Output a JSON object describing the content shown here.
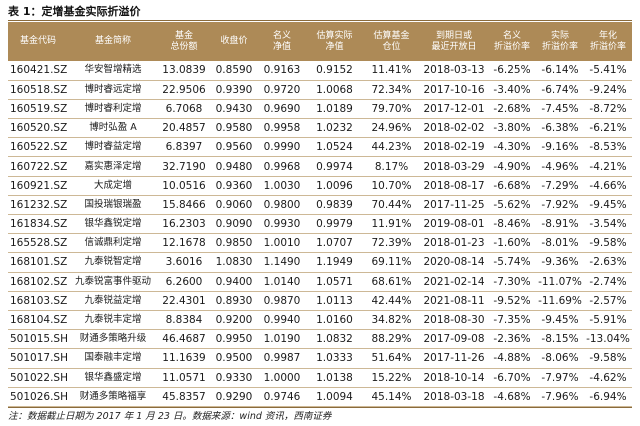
{
  "caption": "表 1：定增基金实际折溢价",
  "headers": [
    "基金代码",
    "基金简称",
    "基金\n总份额",
    "收盘价",
    "名义\n净值",
    "估算实际\n净值",
    "估算基金\n仓位",
    "到期日或\n最近开放日",
    "名义\n折溢价率",
    "实际\n折溢价率",
    "年化\n折溢价率"
  ],
  "rows": [
    [
      "160421.SZ",
      "华安智增精选",
      "13.0839",
      "0.8590",
      "0.9163",
      "0.9152",
      "11.41%",
      "2018-03-13",
      "-6.25%",
      "-6.14%",
      "-5.41%"
    ],
    [
      "160518.SZ",
      "博时睿远定增",
      "22.9506",
      "0.9390",
      "0.9720",
      "1.0068",
      "72.34%",
      "2017-10-16",
      "-3.40%",
      "-6.74%",
      "-9.24%"
    ],
    [
      "160519.SZ",
      "博时睿利定增",
      "6.7068",
      "0.9430",
      "0.9690",
      "1.0189",
      "79.70%",
      "2017-12-01",
      "-2.68%",
      "-7.45%",
      "-8.72%"
    ],
    [
      "160520.SZ",
      "博时弘盈 A",
      "20.4857",
      "0.9580",
      "0.9958",
      "1.0232",
      "24.96%",
      "2018-02-02",
      "-3.80%",
      "-6.38%",
      "-6.21%"
    ],
    [
      "160522.SZ",
      "博时睿益定增",
      "6.8397",
      "0.9560",
      "0.9990",
      "1.0524",
      "44.23%",
      "2018-02-19",
      "-4.30%",
      "-9.16%",
      "-8.53%"
    ],
    [
      "160722.SZ",
      "嘉实惠泽定增",
      "32.7190",
      "0.9480",
      "0.9968",
      "0.9974",
      "8.17%",
      "2018-03-29",
      "-4.90%",
      "-4.96%",
      "-4.21%"
    ],
    [
      "160921.SZ",
      "大成定增",
      "10.0516",
      "0.9360",
      "1.0030",
      "1.0096",
      "10.70%",
      "2018-08-17",
      "-6.68%",
      "-7.29%",
      "-4.66%"
    ],
    [
      "161232.SZ",
      "国投瑞银瑞盈",
      "15.8466",
      "0.9060",
      "0.9800",
      "0.9839",
      "70.44%",
      "2017-11-25",
      "-5.62%",
      "-7.92%",
      "-9.45%"
    ],
    [
      "161834.SZ",
      "银华鑫锐定增",
      "16.2303",
      "0.9090",
      "0.9930",
      "0.9979",
      "11.91%",
      "2019-08-01",
      "-8.46%",
      "-8.91%",
      "-3.54%"
    ],
    [
      "165528.SZ",
      "信诚鼎利定增",
      "12.1678",
      "0.9850",
      "1.0010",
      "1.0707",
      "72.39%",
      "2018-01-23",
      "-1.60%",
      "-8.01%",
      "-9.58%"
    ],
    [
      "168101.SZ",
      "九泰锐智定增",
      "3.6016",
      "1.0830",
      "1.1490",
      "1.1949",
      "69.11%",
      "2020-08-14",
      "-5.74%",
      "-9.36%",
      "-2.63%"
    ],
    [
      "168102.SZ",
      "九泰锐富事件驱动",
      "6.2600",
      "0.9400",
      "1.0140",
      "1.0571",
      "68.61%",
      "2021-02-14",
      "-7.30%",
      "-11.07%",
      "-2.74%"
    ],
    [
      "168103.SZ",
      "九泰锐益定增",
      "22.4301",
      "0.8930",
      "0.9870",
      "1.0113",
      "42.44%",
      "2021-08-11",
      "-9.52%",
      "-11.69%",
      "-2.57%"
    ],
    [
      "168104.SZ",
      "九泰锐丰定增",
      "8.8384",
      "0.9200",
      "0.9940",
      "1.0160",
      "34.82%",
      "2018-08-30",
      "-7.35%",
      "-9.45%",
      "-5.91%"
    ],
    [
      "501015.SH",
      "财通多策略升级",
      "46.4687",
      "0.9950",
      "1.0190",
      "1.0832",
      "88.29%",
      "2017-09-08",
      "-2.36%",
      "-8.15%",
      "-13.04%"
    ],
    [
      "501017.SH",
      "国泰融丰定增",
      "11.1639",
      "0.9500",
      "0.9987",
      "1.0333",
      "51.64%",
      "2017-11-26",
      "-4.88%",
      "-8.06%",
      "-9.58%"
    ],
    [
      "501022.SH",
      "银华鑫盛定增",
      "11.0571",
      "0.9330",
      "1.0000",
      "1.0138",
      "15.22%",
      "2018-10-14",
      "-6.70%",
      "-7.97%",
      "-4.62%"
    ],
    [
      "501026.SH",
      "财通多策略福享",
      "45.8357",
      "0.9290",
      "0.9746",
      "1.0094",
      "45.14%",
      "2018-03-18",
      "-4.68%",
      "-7.96%",
      "-6.94%"
    ]
  ],
  "note": "注：数据截止日期为 2017 年 1 月 23 日。数据来源：wind 资讯，西南证券",
  "colors": {
    "header_bg": "#ad8a57",
    "rule": "#8a6b3c",
    "row_line": "#cdb896"
  }
}
